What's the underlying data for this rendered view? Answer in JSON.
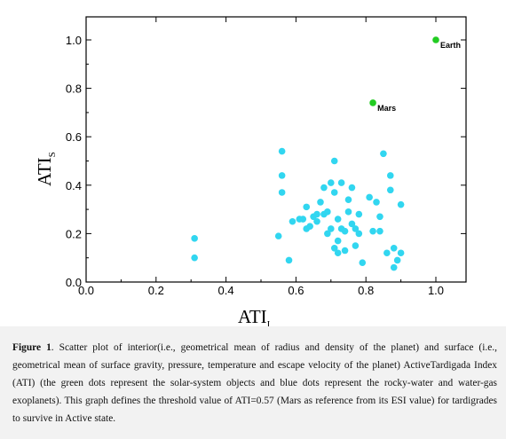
{
  "chart_data": {
    "type": "scatter",
    "xlabel": {
      "main": "ATI",
      "sub": "I"
    },
    "ylabel": {
      "main": "ATI",
      "sub": "S"
    },
    "xlim": [
      0.0,
      1.0
    ],
    "ylim": [
      0.0,
      1.0
    ],
    "xticks": [
      "0.0",
      "0.2",
      "0.4",
      "0.6",
      "0.8",
      "1.0"
    ],
    "yticks": [
      "0.0",
      "0.2",
      "0.4",
      "0.6",
      "0.8",
      "1.0"
    ],
    "grid": false,
    "series": [
      {
        "color": "#31d6f0",
        "points": [
          [
            0.31,
            0.18
          ],
          [
            0.31,
            0.1
          ],
          [
            0.56,
            0.54
          ],
          [
            0.56,
            0.44
          ],
          [
            0.56,
            0.37
          ],
          [
            0.55,
            0.19
          ],
          [
            0.58,
            0.09
          ],
          [
            0.59,
            0.25
          ],
          [
            0.61,
            0.26
          ],
          [
            0.62,
            0.26
          ],
          [
            0.63,
            0.31
          ],
          [
            0.63,
            0.22
          ],
          [
            0.64,
            0.23
          ],
          [
            0.65,
            0.27
          ],
          [
            0.66,
            0.28
          ],
          [
            0.66,
            0.25
          ],
          [
            0.67,
            0.33
          ],
          [
            0.68,
            0.39
          ],
          [
            0.68,
            0.28
          ],
          [
            0.69,
            0.29
          ],
          [
            0.69,
            0.2
          ],
          [
            0.7,
            0.41
          ],
          [
            0.7,
            0.22
          ],
          [
            0.71,
            0.37
          ],
          [
            0.71,
            0.14
          ],
          [
            0.71,
            0.5
          ],
          [
            0.72,
            0.26
          ],
          [
            0.72,
            0.17
          ],
          [
            0.72,
            0.12
          ],
          [
            0.73,
            0.41
          ],
          [
            0.73,
            0.22
          ],
          [
            0.74,
            0.21
          ],
          [
            0.74,
            0.13
          ],
          [
            0.75,
            0.34
          ],
          [
            0.75,
            0.29
          ],
          [
            0.76,
            0.39
          ],
          [
            0.76,
            0.24
          ],
          [
            0.77,
            0.22
          ],
          [
            0.77,
            0.15
          ],
          [
            0.78,
            0.28
          ],
          [
            0.78,
            0.2
          ],
          [
            0.79,
            0.08
          ],
          [
            0.81,
            0.35
          ],
          [
            0.82,
            0.21
          ],
          [
            0.83,
            0.33
          ],
          [
            0.84,
            0.27
          ],
          [
            0.84,
            0.21
          ],
          [
            0.85,
            0.53
          ],
          [
            0.86,
            0.12
          ],
          [
            0.87,
            0.44
          ],
          [
            0.87,
            0.38
          ],
          [
            0.88,
            0.14
          ],
          [
            0.88,
            0.06
          ],
          [
            0.89,
            0.09
          ],
          [
            0.9,
            0.32
          ],
          [
            0.9,
            0.12
          ]
        ]
      },
      {
        "color": "#22cc22",
        "points": [
          [
            1.0,
            1.0,
            "Earth"
          ],
          [
            0.82,
            0.74,
            "Mars"
          ]
        ]
      }
    ]
  },
  "caption": {
    "label": "Figure 1",
    "text": ". Scatter plot of interior(i.e., geometrical mean of radius and density of the planet) and surface (i.e., geometrical mean of surface gravity, pressure, temperature and escape velocity of the planet) ActiveTardigada Index (ATI) (the green dots represent the solar-system objects and blue dots represent the rocky-water and water-gas exoplanets). This graph defines the threshold value of ATI=0.57 (Mars as reference from its ESI value) for tardigrades to survive in Active state."
  }
}
